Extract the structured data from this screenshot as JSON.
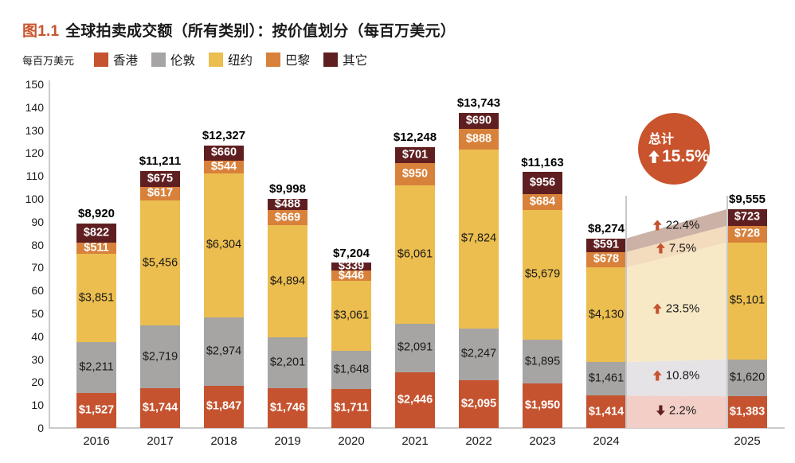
{
  "title": {
    "figure_label": "图1.1",
    "text": "全球拍卖成交额（所有类别）：按价值划分（每百万美元）"
  },
  "axis": {
    "unit_label": "每百万美元",
    "y_min": 0,
    "y_max": 150,
    "y_tick_step": 10
  },
  "chart_data": {
    "type": "bar",
    "stacked": true,
    "title": "全球拍卖成交额（所有类别）：按价值划分（每百万美元）",
    "ylabel": "每百万美元",
    "ylim": [
      0,
      150
    ],
    "grid": false,
    "legend_position": "top",
    "categories": [
      "2016",
      "2017",
      "2018",
      "2019",
      "2020",
      "2021",
      "2022",
      "2023",
      "2024",
      "2025"
    ],
    "series": [
      {
        "name": "香港",
        "color": "#c5532f",
        "label_color": "#ffffff",
        "values": [
          1527,
          1744,
          1847,
          1746,
          1711,
          2446,
          2095,
          1950,
          1414,
          1383
        ]
      },
      {
        "name": "伦敦",
        "color": "#a7a5a3",
        "label_color": "#1a1a1a",
        "values": [
          2211,
          2719,
          2974,
          2201,
          1648,
          2091,
          2247,
          1895,
          1461,
          1620
        ]
      },
      {
        "name": "纽约",
        "color": "#ecbe4f",
        "label_color": "#1a1a1a",
        "values": [
          3851,
          5456,
          6304,
          4894,
          3061,
          6061,
          7824,
          5679,
          4130,
          5101
        ]
      },
      {
        "name": "巴黎",
        "color": "#d8813b",
        "label_color": "#ffffff",
        "values": [
          511,
          617,
          544,
          669,
          446,
          950,
          888,
          684,
          678,
          728
        ]
      },
      {
        "name": "其它",
        "color": "#5f1f20",
        "label_color": "#ffffff",
        "values": [
          822,
          675,
          660,
          488,
          339,
          701,
          690,
          956,
          591,
          723
        ]
      }
    ],
    "totals": [
      8920,
      11211,
      12327,
      9998,
      7204,
      12248,
      13743,
      11163,
      8274,
      9555
    ],
    "yoy_band": {
      "from": "2024",
      "to": "2025",
      "items": [
        {
          "series": "香港",
          "pct": "2.2%",
          "direction": "down",
          "tint": "#f2cec6"
        },
        {
          "series": "伦敦",
          "pct": "10.8%",
          "direction": "up",
          "tint": "#e5e3e5"
        },
        {
          "series": "纽约",
          "pct": "23.5%",
          "direction": "up",
          "tint": "#f8e9c6"
        },
        {
          "series": "巴黎",
          "pct": "7.5%",
          "direction": "up",
          "tint": "#f3dbbd"
        },
        {
          "series": "其它",
          "pct": "22.4%",
          "direction": "up",
          "tint": "#cbb1a6"
        }
      ]
    },
    "badge": {
      "label": "总计",
      "pct": "15.5%",
      "direction": "up",
      "color": "#c8532d"
    }
  },
  "colors": {
    "accent": "#c8532d",
    "down_arrow": "#5f1f20",
    "axis_line": "#cbcbcb"
  }
}
